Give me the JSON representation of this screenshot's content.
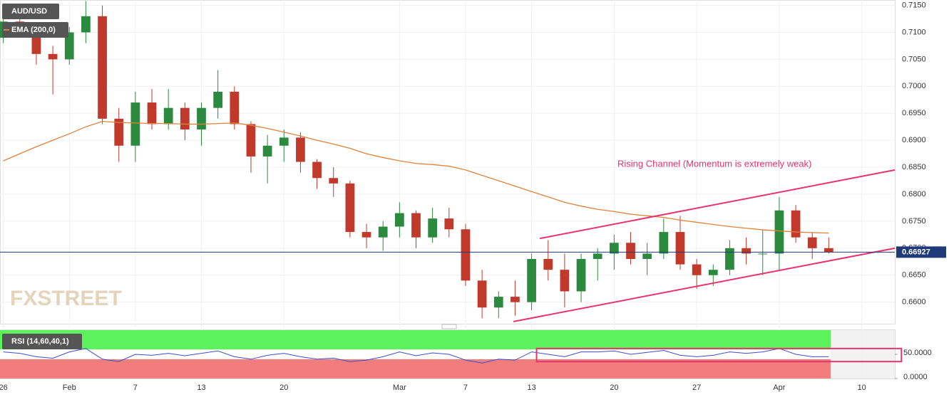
{
  "chart_data": [
    {
      "type": "candlestick",
      "x": [
        0,
        1,
        2,
        3,
        4,
        5,
        6,
        7,
        8,
        9,
        10,
        11,
        12,
        13,
        14,
        15,
        16,
        17,
        18,
        19,
        20,
        21,
        22,
        23,
        24,
        25,
        26,
        27,
        28,
        29,
        30,
        31,
        32,
        33,
        34,
        35,
        36,
        37,
        38,
        39,
        40,
        41,
        42,
        43,
        44,
        45,
        46,
        47,
        48,
        49,
        50
      ],
      "xlim": [
        -0.2,
        54
      ],
      "xticks": [
        {
          "value": 0,
          "label": "26"
        },
        {
          "value": 4,
          "label": "Feb"
        },
        {
          "value": 8,
          "label": "7"
        },
        {
          "value": 12,
          "label": "13"
        },
        {
          "value": 17,
          "label": "20"
        },
        {
          "value": 24,
          "label": "Mar"
        },
        {
          "value": 28,
          "label": "7"
        },
        {
          "value": 32,
          "label": "13"
        },
        {
          "value": 37,
          "label": "20"
        },
        {
          "value": 42,
          "label": "27"
        },
        {
          "value": 47,
          "label": "Apr"
        },
        {
          "value": 52,
          "label": "10"
        }
      ],
      "ylim": [
        0.656,
        0.716
      ],
      "yticks": [
        {
          "value": 0.66,
          "label": "0.6600"
        },
        {
          "value": 0.665,
          "label": "0.6650"
        },
        {
          "value": 0.67,
          "label": "0.6700"
        },
        {
          "value": 0.675,
          "label": "0.6750"
        },
        {
          "value": 0.68,
          "label": "0.6800"
        },
        {
          "value": 0.685,
          "label": "0.6850"
        },
        {
          "value": 0.69,
          "label": "0.6900"
        },
        {
          "value": 0.695,
          "label": "0.6950"
        },
        {
          "value": 0.7,
          "label": "0.7000"
        },
        {
          "value": 0.705,
          "label": "0.7050"
        },
        {
          "value": 0.71,
          "label": "0.7100"
        },
        {
          "value": 0.715,
          "label": "0.7150"
        }
      ],
      "grid": true,
      "series": [
        {
          "name": "AUD/USD",
          "up_color": "#2b8a3e",
          "down_color": "#c0392b",
          "open": [
            0.709,
            0.712,
            0.71,
            0.706,
            0.705,
            0.71,
            0.713,
            0.694,
            0.689,
            0.697,
            0.693,
            0.696,
            0.692,
            0.696,
            0.699,
            0.693,
            0.687,
            0.689,
            0.6905,
            0.686,
            0.683,
            0.682,
            0.673,
            0.672,
            0.674,
            0.6765,
            0.672,
            0.6755,
            0.6735,
            0.664,
            0.659,
            0.661,
            0.66,
            0.668,
            0.666,
            0.662,
            0.668,
            0.669,
            0.671,
            0.668,
            0.669,
            0.673,
            0.667,
            0.665,
            0.666,
            0.67,
            0.669,
            0.669,
            0.677,
            0.672,
            0.67
          ],
          "high": [
            0.714,
            0.714,
            0.711,
            0.7075,
            0.711,
            0.7158,
            0.715,
            0.696,
            0.699,
            0.6995,
            0.6995,
            0.697,
            0.697,
            0.703,
            0.7,
            0.6935,
            0.691,
            0.692,
            0.6915,
            0.6865,
            0.685,
            0.6825,
            0.6745,
            0.675,
            0.6785,
            0.677,
            0.6775,
            0.6775,
            0.6745,
            0.666,
            0.662,
            0.664,
            0.669,
            0.6715,
            0.669,
            0.669,
            0.67,
            0.6725,
            0.673,
            0.671,
            0.6755,
            0.676,
            0.668,
            0.667,
            0.6715,
            0.672,
            0.6735,
            0.6795,
            0.678,
            0.673,
            0.672
          ],
          "low": [
            0.708,
            0.709,
            0.704,
            0.6985,
            0.704,
            0.708,
            0.693,
            0.686,
            0.686,
            0.692,
            0.692,
            0.69,
            0.689,
            0.694,
            0.692,
            0.684,
            0.682,
            0.686,
            0.684,
            0.681,
            0.6795,
            0.672,
            0.67,
            0.6695,
            0.672,
            0.67,
            0.671,
            0.672,
            0.663,
            0.657,
            0.657,
            0.6575,
            0.6585,
            0.664,
            0.659,
            0.66,
            0.664,
            0.666,
            0.667,
            0.665,
            0.668,
            0.666,
            0.6625,
            0.663,
            0.665,
            0.667,
            0.665,
            0.666,
            0.671,
            0.668,
            0.669
          ],
          "close": [
            0.712,
            0.71,
            0.706,
            0.705,
            0.71,
            0.713,
            0.694,
            0.689,
            0.697,
            0.693,
            0.696,
            0.692,
            0.696,
            0.699,
            0.693,
            0.687,
            0.689,
            0.6905,
            0.686,
            0.683,
            0.682,
            0.673,
            0.672,
            0.674,
            0.6765,
            0.672,
            0.6755,
            0.6735,
            0.664,
            0.659,
            0.661,
            0.66,
            0.668,
            0.666,
            0.662,
            0.668,
            0.669,
            0.671,
            0.668,
            0.669,
            0.673,
            0.667,
            0.665,
            0.666,
            0.67,
            0.669,
            0.669,
            0.677,
            0.672,
            0.67,
            0.66927
          ]
        },
        {
          "name": "EMA (200,0)",
          "color": "#e0823c",
          "values": [
            0.6862,
            0.6875,
            0.6888,
            0.69,
            0.6912,
            0.6925,
            0.6935,
            0.6933,
            0.6932,
            0.6931,
            0.6931,
            0.693,
            0.693,
            0.6931,
            0.6932,
            0.6928,
            0.6922,
            0.6915,
            0.6908,
            0.69,
            0.6893,
            0.6885,
            0.6875,
            0.6868,
            0.6862,
            0.6857,
            0.6855,
            0.6852,
            0.6845,
            0.6835,
            0.6825,
            0.6815,
            0.6805,
            0.6795,
            0.6785,
            0.6778,
            0.6772,
            0.6768,
            0.6763,
            0.676,
            0.6757,
            0.6752,
            0.6748,
            0.6744,
            0.674,
            0.6737,
            0.6734,
            0.6732,
            0.673,
            0.6729,
            0.6728
          ]
        }
      ],
      "annotation": "Rising Channel (Momentum is extremely weak)",
      "channel": {
        "color": "#e8336d",
        "upper": {
          "x": [
            32.5,
            54
          ],
          "y": [
            0.6718,
            0.6845
          ]
        },
        "lower": {
          "x": [
            30.9,
            54
          ],
          "y": [
            0.6564,
            0.67
          ]
        }
      },
      "last_price": {
        "value": 0.66927,
        "label": "0.66927",
        "color": "#1f3a78"
      },
      "logo": "FXSTREET"
    },
    {
      "type": "line",
      "x": [
        0,
        1,
        2,
        3,
        4,
        5,
        6,
        7,
        8,
        9,
        10,
        11,
        12,
        13,
        14,
        15,
        16,
        17,
        18,
        19,
        20,
        21,
        22,
        23,
        24,
        25,
        26,
        27,
        28,
        29,
        30,
        31,
        32,
        33,
        34,
        35,
        36,
        37,
        38,
        39,
        40,
        41,
        42,
        43,
        44,
        45,
        46,
        47,
        48,
        49,
        50
      ],
      "xlim": [
        -0.2,
        54
      ],
      "ylim": [
        0,
        100
      ],
      "yticks": [
        {
          "value": 50,
          "label": "50.0000"
        },
        {
          "value": 0,
          "label": "0.0000"
        }
      ],
      "bands": [
        {
          "range": [
            60,
            100
          ],
          "color": "#5cf25c"
        },
        {
          "range": [
            0,
            40
          ],
          "color": "#f27d7d"
        }
      ],
      "series": [
        {
          "name": "RSI (14,60,40,1)",
          "color": "#3b4fd0",
          "values": [
            55,
            52,
            45,
            42,
            55,
            62,
            40,
            35,
            50,
            48,
            52,
            47,
            52,
            57,
            45,
            40,
            48,
            52,
            45,
            40,
            42,
            35,
            38,
            45,
            55,
            47,
            53,
            50,
            38,
            32,
            40,
            38,
            55,
            50,
            45,
            55,
            55,
            57,
            50,
            54,
            58,
            48,
            45,
            48,
            55,
            52,
            55,
            62,
            50,
            45,
            45
          ]
        }
      ],
      "box": {
        "x": [
          32.3,
          54.4
        ],
        "y": [
          35,
          62
        ],
        "color": "#e8336d"
      }
    }
  ]
}
